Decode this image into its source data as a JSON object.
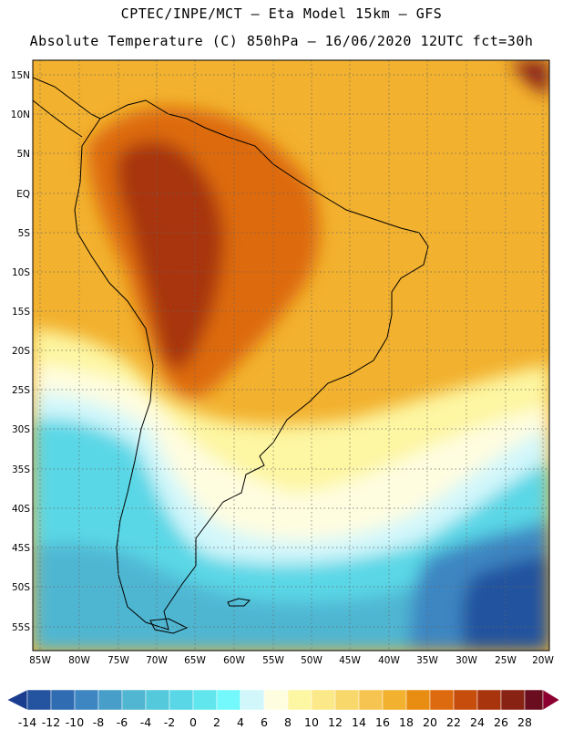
{
  "header": {
    "line1": "CPTEC/INPE/MCT –  Eta Model 15km – GFS",
    "line2": "Absolute Temperature (C) 850hPa – 16/06/2020 12UTC fct=30h"
  },
  "map": {
    "lat_ticks": [
      "15N",
      "10N",
      "5N",
      "EQ",
      "5S",
      "10S",
      "15S",
      "20S",
      "25S",
      "30S",
      "35S",
      "40S",
      "45S",
      "50S",
      "55S"
    ],
    "lon_ticks": [
      "85W",
      "80W",
      "75W",
      "70W",
      "65W",
      "60W",
      "55W",
      "50W",
      "45W",
      "40W",
      "35W",
      "30W",
      "25W",
      "20W"
    ],
    "variable": "Temperature at 850 hPa (°C)",
    "grid": "dotted"
  },
  "colorbar": {
    "labels": [
      "-14",
      "-12",
      "-10",
      "-8",
      "-6",
      "-4",
      "-2",
      "0",
      "2",
      "4",
      "6",
      "8",
      "10",
      "12",
      "14",
      "16",
      "18",
      "20",
      "22",
      "24",
      "26",
      "28"
    ],
    "colors": [
      "#1b3d8f",
      "#24539f",
      "#2f6cb2",
      "#3e86c2",
      "#479ec9",
      "#50b6d2",
      "#55c9dc",
      "#5ad7e6",
      "#62e6ee",
      "#73f9fb",
      "#d2f7fb",
      "#fefde0",
      "#fdf6a2",
      "#fbe888",
      "#f8d76b",
      "#f5c451",
      "#f2b12e",
      "#e88c12",
      "#dd6a0e",
      "#c74d0d",
      "#a8340d",
      "#882212",
      "#6a0e1f",
      "#8b0030"
    ]
  }
}
